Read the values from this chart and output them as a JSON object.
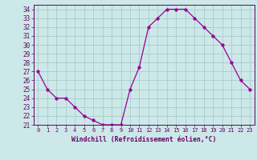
{
  "x": [
    0,
    1,
    2,
    3,
    4,
    5,
    6,
    7,
    8,
    9,
    10,
    11,
    12,
    13,
    14,
    15,
    16,
    17,
    18,
    19,
    20,
    21,
    22,
    23
  ],
  "y": [
    27,
    25,
    24,
    24,
    23,
    22,
    21.5,
    21,
    21,
    21,
    25,
    27.5,
    32,
    33,
    34,
    34,
    34,
    33,
    32,
    31,
    30,
    28,
    26,
    25
  ],
  "line_color": "#990099",
  "marker": "o",
  "marker_size": 2.5,
  "bg_color": "#cce8e8",
  "grid_color": "#aacccc",
  "xlabel": "Windchill (Refroidissement éolien,°C)",
  "xlabel_color": "#660066",
  "tick_color": "#660066",
  "ylim": [
    21,
    34.5
  ],
  "xlim": [
    -0.5,
    23.5
  ],
  "yticks": [
    21,
    22,
    23,
    24,
    25,
    26,
    27,
    28,
    29,
    30,
    31,
    32,
    33,
    34
  ],
  "xticks": [
    0,
    1,
    2,
    3,
    4,
    5,
    6,
    7,
    8,
    9,
    10,
    11,
    12,
    13,
    14,
    15,
    16,
    17,
    18,
    19,
    20,
    21,
    22,
    23
  ]
}
